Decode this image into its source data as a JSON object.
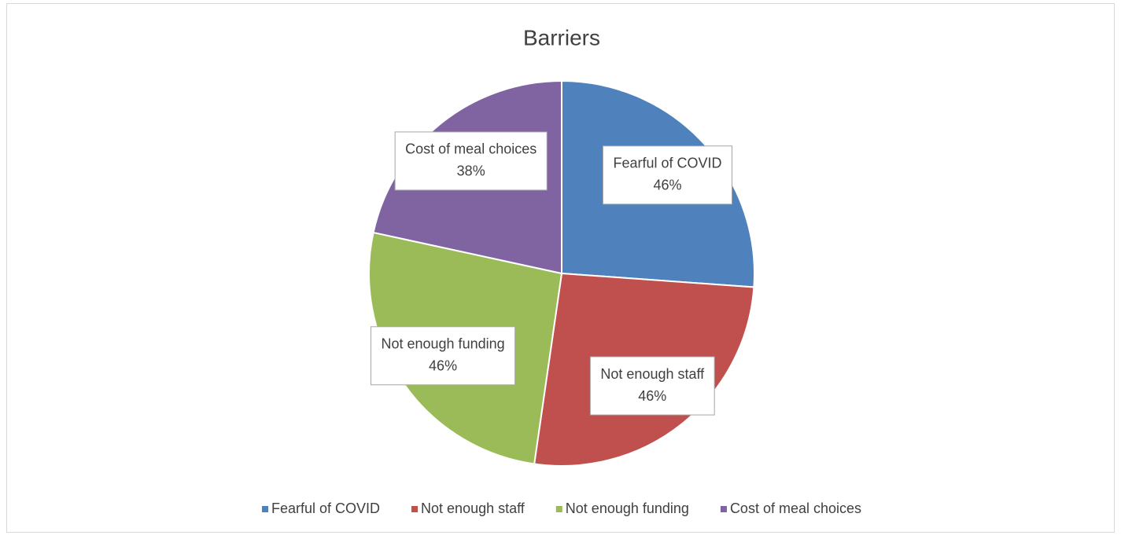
{
  "chart_data": {
    "type": "pie",
    "title": "Barriers",
    "categories": [
      "Fearful of COVID",
      "Not enough staff",
      "Not enough funding",
      "Cost of meal choices"
    ],
    "values": [
      46,
      46,
      46,
      38
    ],
    "value_labels": [
      "46%",
      "46%",
      "46%",
      "38%"
    ],
    "colors": [
      "#4f81bd",
      "#c0504d",
      "#9bbb59",
      "#8064a2"
    ],
    "legend": "bottom"
  }
}
